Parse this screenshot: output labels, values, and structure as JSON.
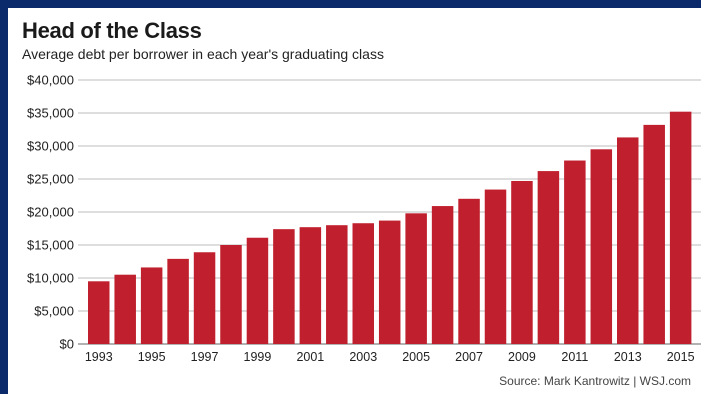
{
  "chart_data": {
    "type": "bar",
    "title": "Head of the Class",
    "subtitle": "Average debt per borrower in each year's graduating class",
    "source": "Source: Mark Kantrowitz  |  WSJ.com",
    "categories": [
      "1993",
      "1994",
      "1995",
      "1996",
      "1997",
      "1998",
      "1999",
      "2000",
      "2001",
      "2002",
      "2003",
      "2004",
      "2005",
      "2006",
      "2007",
      "2008",
      "2009",
      "2010",
      "2011",
      "2012",
      "2013",
      "2014",
      "2015"
    ],
    "x_tick_labels": [
      "1993",
      "1995",
      "1997",
      "1999",
      "2001",
      "2003",
      "2005",
      "2007",
      "2009",
      "2011",
      "2013",
      "2015"
    ],
    "values": [
      9500,
      10500,
      11600,
      12900,
      13900,
      15000,
      16100,
      17400,
      17700,
      18000,
      18300,
      18700,
      19800,
      20900,
      22000,
      23400,
      24700,
      26200,
      27800,
      29500,
      31300,
      33200,
      35200
    ],
    "ylim": [
      0,
      40000
    ],
    "y_tick_labels": [
      "$0",
      "$5,000",
      "$10,000",
      "$15,000",
      "$20,000",
      "$25,000",
      "$30,000",
      "$35,000",
      "$40,000"
    ],
    "xlabel": "",
    "ylabel": "",
    "grid": true,
    "bar_color": "#c0202d"
  }
}
